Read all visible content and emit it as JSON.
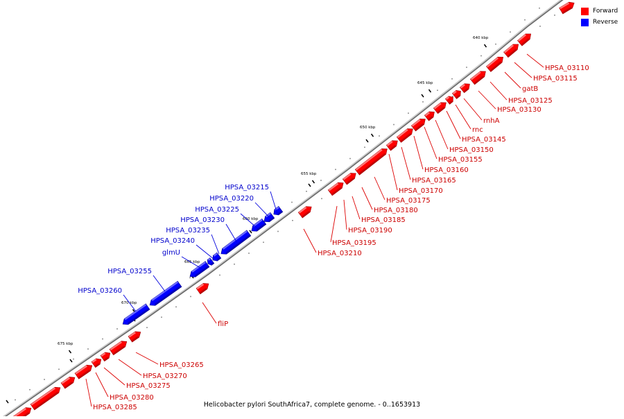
{
  "legend": [
    {
      "label": "Forward",
      "color": "#ff0000"
    },
    {
      "label": "Reverse",
      "color": "#0000ff"
    }
  ],
  "caption": "Helicobacter pylori SouthAfrica7, complete genome. - 0..1653913",
  "colors": {
    "forward": "#ff0000",
    "reverse": "#0000ff",
    "forward_label": "#cc0000",
    "reverse_label": "#0000cc",
    "backbone": "#888888"
  },
  "ticks": [
    "640 kbp",
    "645 kbp",
    "650 kbp",
    "655 kbp",
    "660 kbp",
    "665 kbp",
    "670 kbp",
    "675 kbp"
  ],
  "forward_genes": [
    "HPSA_03110",
    "HPSA_03115",
    "gatB",
    "HPSA_03125",
    "HPSA_03130",
    "rnhA",
    "rnc",
    "HPSA_03145",
    "HPSA_03150",
    "HPSA_03155",
    "HPSA_03160",
    "HPSA_03165",
    "HPSA_03170",
    "HPSA_03175",
    "HPSA_03180",
    "HPSA_03185",
    "HPSA_03190",
    "HPSA_03195",
    "HPSA_03210",
    "fliP",
    "HPSA_03265",
    "HPSA_03270",
    "HPSA_03275",
    "HPSA_03280",
    "HPSA_03285"
  ],
  "reverse_genes": [
    "HPSA_03215",
    "HPSA_03220",
    "HPSA_03225",
    "HPSA_03230",
    "HPSA_03235",
    "HPSA_03240",
    "glmU",
    "HPSA_03255",
    "HPSA_03260"
  ]
}
